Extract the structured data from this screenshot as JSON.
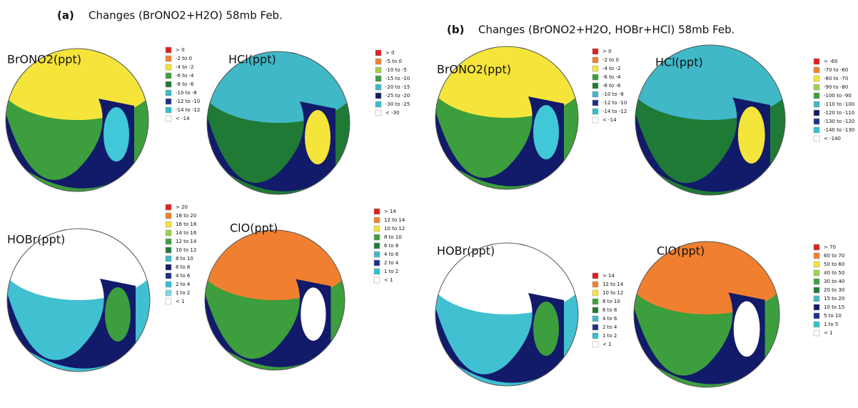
{
  "panels": [
    {
      "label": "(a)",
      "title": "Changes (BrONO2+H2O) 58mb Feb.",
      "maps": [
        {
          "label": "BrONO2(ppt)",
          "legend": [
            "> 0",
            "-2 to 0",
            "-4 to -2",
            "-6 to -4",
            "-8 to -6",
            "-10 to -8",
            "-12 to -10",
            "-14 to -12",
            "< -14"
          ]
        },
        {
          "label": "HCl(ppt)",
          "legend": [
            "> 0",
            "-5 to 0",
            "-10 to -5",
            "-15 to -10",
            "-20 to -15",
            "-25 to -20",
            "-30 to -25",
            "< -30"
          ]
        },
        {
          "label": "HOBr(ppt)",
          "legend": [
            "> 20",
            "18 to 20",
            "16 to 18",
            "14 to 16",
            "12 to 14",
            "10 to 12",
            "8 to 10",
            "6 to 8",
            "4 to 6",
            "2 to 4",
            "1 to 2",
            "< 1"
          ]
        },
        {
          "label": "ClO(ppt)",
          "legend": [
            "> 14",
            "12 to 14",
            "10 to 12",
            "8 to 10",
            "6 to 8",
            "4 to 6",
            "2 to 4",
            "1 to 2",
            "< 1"
          ]
        }
      ]
    },
    {
      "label": "(b)",
      "title": "Changes (BrONO2+H2O, HOBr+HCl) 58mb Feb.",
      "maps": [
        {
          "label": "BrONO2(ppt)",
          "legend": [
            "> 0",
            "-2 to 0",
            "-4 to -2",
            "-6 to -4",
            "-8 to -6",
            "-10 to -8",
            "-12 to -10",
            "-14 to -12",
            "< -14"
          ]
        },
        {
          "label": "HCl(ppt)",
          "legend": [
            "> -60",
            "-70 to -60",
            "-80 to -70",
            "-90 to -80",
            "-100 to -90",
            "-110 to -100",
            "-120 to -110",
            "-130 to -120",
            "-140 to -130",
            "< -140"
          ]
        },
        {
          "label": "HOBr(ppt)",
          "legend": [
            "> 14",
            "12 to 14",
            "10 to 12",
            "8 to 10",
            "6 to 8",
            "4 to 6",
            "2 to 4",
            "1 to 2",
            "< 1"
          ]
        },
        {
          "label": "ClO(ppt)",
          "legend": [
            "> 70",
            "60 to 70",
            "50 to 60",
            "40 to 50",
            "30 to 40",
            "20 to 30",
            "15 to 20",
            "10 to 15",
            "5 to 10",
            "1 to 5",
            "< 1"
          ]
        }
      ]
    }
  ]
}
